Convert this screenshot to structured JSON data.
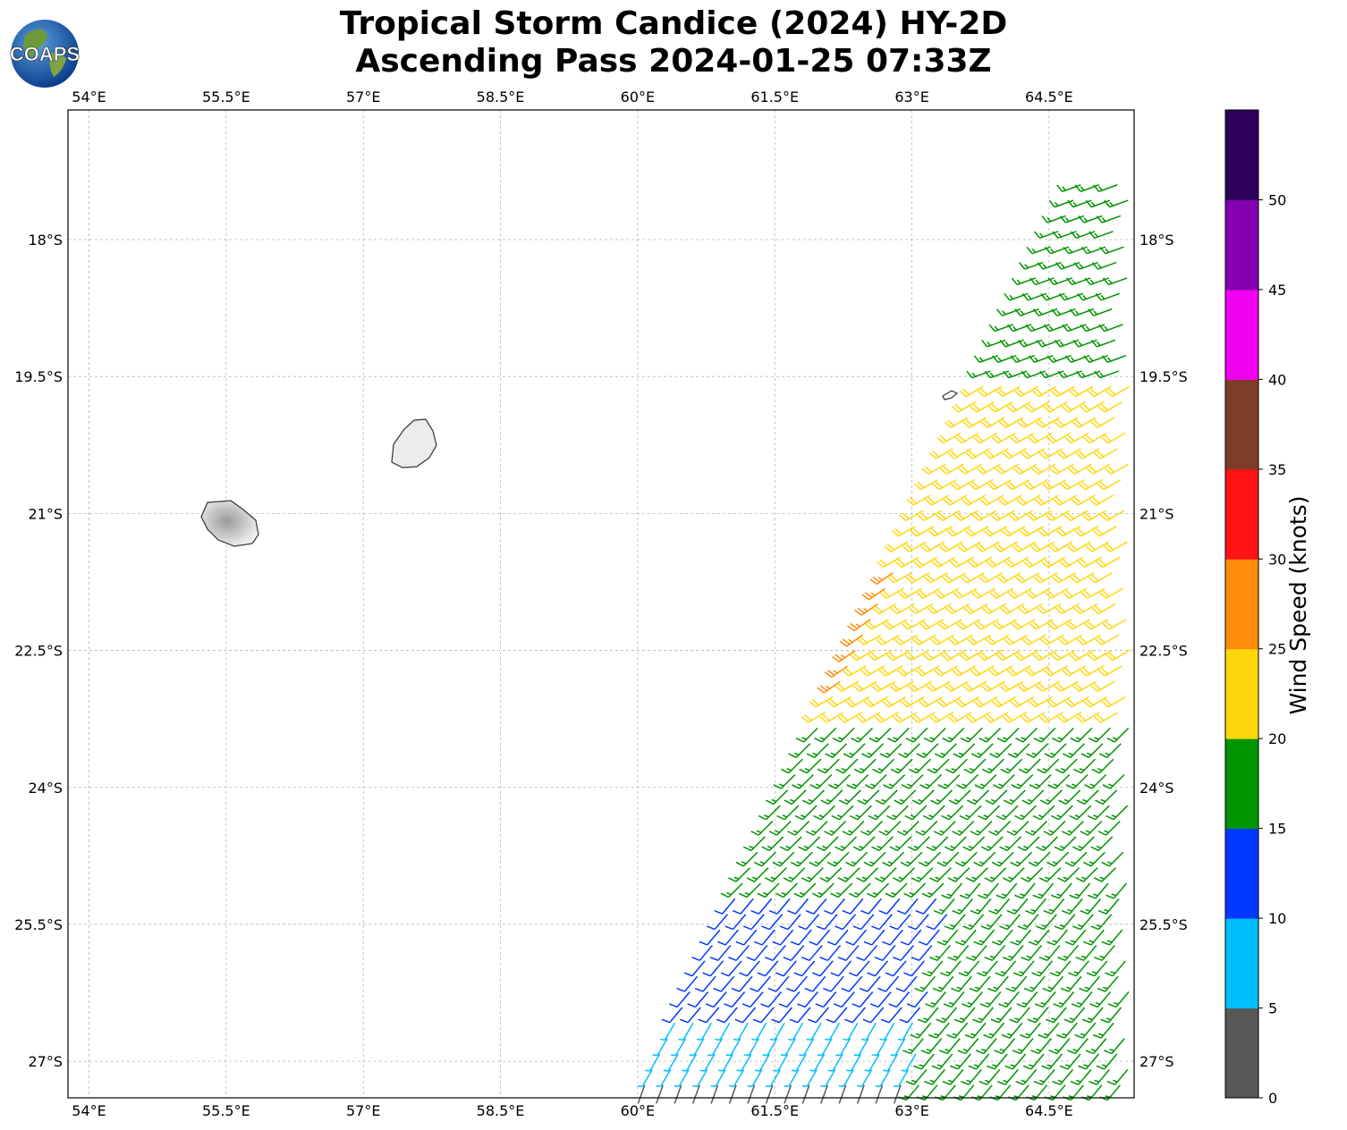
{
  "title": {
    "line1": "Tropical Storm Candice (2024) HY-2D",
    "line2": "Ascending Pass 2024-01-25 07:33Z"
  },
  "logo": {
    "text": "COAPS",
    "colors": {
      "ocean": "#1f5fb0",
      "land": "#6e9a3a"
    }
  },
  "map": {
    "lon_ticks": [
      "54°E",
      "55.5°E",
      "57°E",
      "58.5°E",
      "60°E",
      "61.5°E",
      "63°E",
      "64.5°E"
    ],
    "lat_ticks": [
      "18°S",
      "19.5°S",
      "21°S",
      "22.5°S",
      "24°S",
      "25.5°S",
      "27°S"
    ],
    "lon_range": [
      53.77,
      65.43
    ],
    "lat_range": [
      -16.58,
      -27.4
    ],
    "gridlines": true,
    "islands": [
      "Réunion",
      "Mauritius",
      "Rodrigues"
    ]
  },
  "colorbar": {
    "label": "Wind Speed (knots)",
    "ticks": [
      "0",
      "5",
      "10",
      "15",
      "20",
      "25",
      "30",
      "35",
      "40",
      "45",
      "50"
    ],
    "bins": [
      {
        "min": 0,
        "max": 5,
        "color": "#585858"
      },
      {
        "min": 5,
        "max": 10,
        "color": "#00bfff"
      },
      {
        "min": 10,
        "max": 15,
        "color": "#0038ff"
      },
      {
        "min": 15,
        "max": 20,
        "color": "#009400"
      },
      {
        "min": 20,
        "max": 25,
        "color": "#ffd70c"
      },
      {
        "min": 25,
        "max": 30,
        "color": "#ff8c0c"
      },
      {
        "min": 30,
        "max": 35,
        "color": "#ff1414"
      },
      {
        "min": 35,
        "max": 40,
        "color": "#7f3c28"
      },
      {
        "min": 40,
        "max": 45,
        "color": "#f000f0"
      },
      {
        "min": 45,
        "max": 50,
        "color": "#8400b0"
      },
      {
        "min": 50,
        "max": 55,
        "color": "#2c0058"
      }
    ]
  },
  "chart_data": {
    "type": "scatter",
    "description_of_marks": "wind barbs along an ascending swath",
    "swath_edge_lon_at_lat": [
      [
        -27.4,
        59.97
      ],
      [
        -17.0,
        65.0
      ]
    ],
    "wind_regions": [
      {
        "lat_from": -17.3,
        "lat_to": -19.6,
        "speed_kt": 17,
        "direction_deg": 250
      },
      {
        "lat_from": -19.6,
        "lat_to": -23.3,
        "speed_kt": 22,
        "direction_deg": 240
      },
      {
        "lat_from": -21.6,
        "lat_to": -22.9,
        "speed_kt": 27,
        "direction_deg": 235,
        "note": "left edge band"
      },
      {
        "lat_from": -23.3,
        "lat_to": -25.8,
        "speed_kt": 17,
        "direction_deg": 225
      },
      {
        "lat_from": -25.2,
        "lat_to": -26.8,
        "speed_kt": 12,
        "direction_deg": 220
      },
      {
        "lat_from": -26.5,
        "lat_to": -27.4,
        "speed_kt": 7,
        "direction_deg": 210
      },
      {
        "lat_from": -27.1,
        "lat_to": -27.4,
        "speed_kt": 3,
        "direction_deg": 200
      }
    ]
  }
}
